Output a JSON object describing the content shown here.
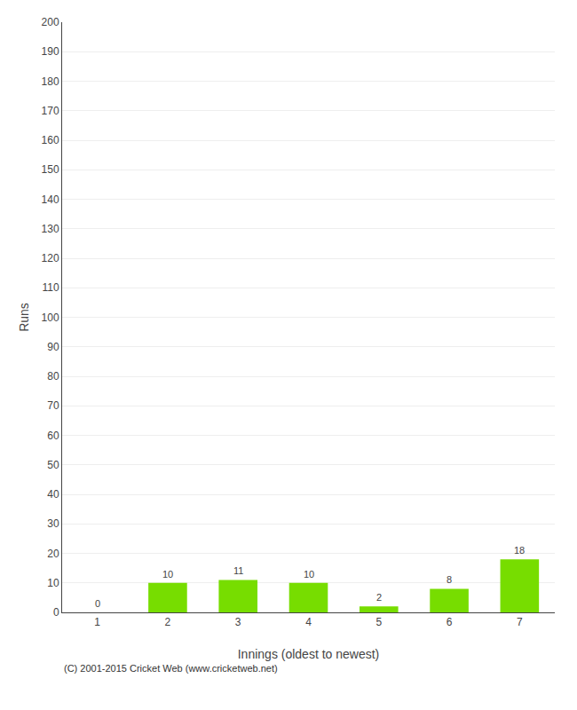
{
  "chart_data": {
    "type": "bar",
    "x": [
      1,
      2,
      3,
      4,
      5,
      6,
      7
    ],
    "values": [
      0,
      10,
      11,
      10,
      2,
      8,
      18
    ],
    "color": "#77dd00",
    "xlabel": "Innings (oldest to newest)",
    "ylabel": "Runs",
    "xlim": [
      0.5,
      7.5
    ],
    "xticks": [
      1,
      2,
      3,
      4,
      5,
      6,
      7
    ],
    "ylim": [
      0,
      200
    ],
    "yticks": [
      0,
      10,
      20,
      30,
      40,
      50,
      60,
      70,
      80,
      90,
      100,
      110,
      120,
      130,
      140,
      150,
      160,
      170,
      180,
      190,
      200
    ],
    "grid": "y",
    "data_labels": true,
    "annotations": [
      "(C) 2001-2015 Cricket Web (www.cricketweb.net)"
    ]
  }
}
